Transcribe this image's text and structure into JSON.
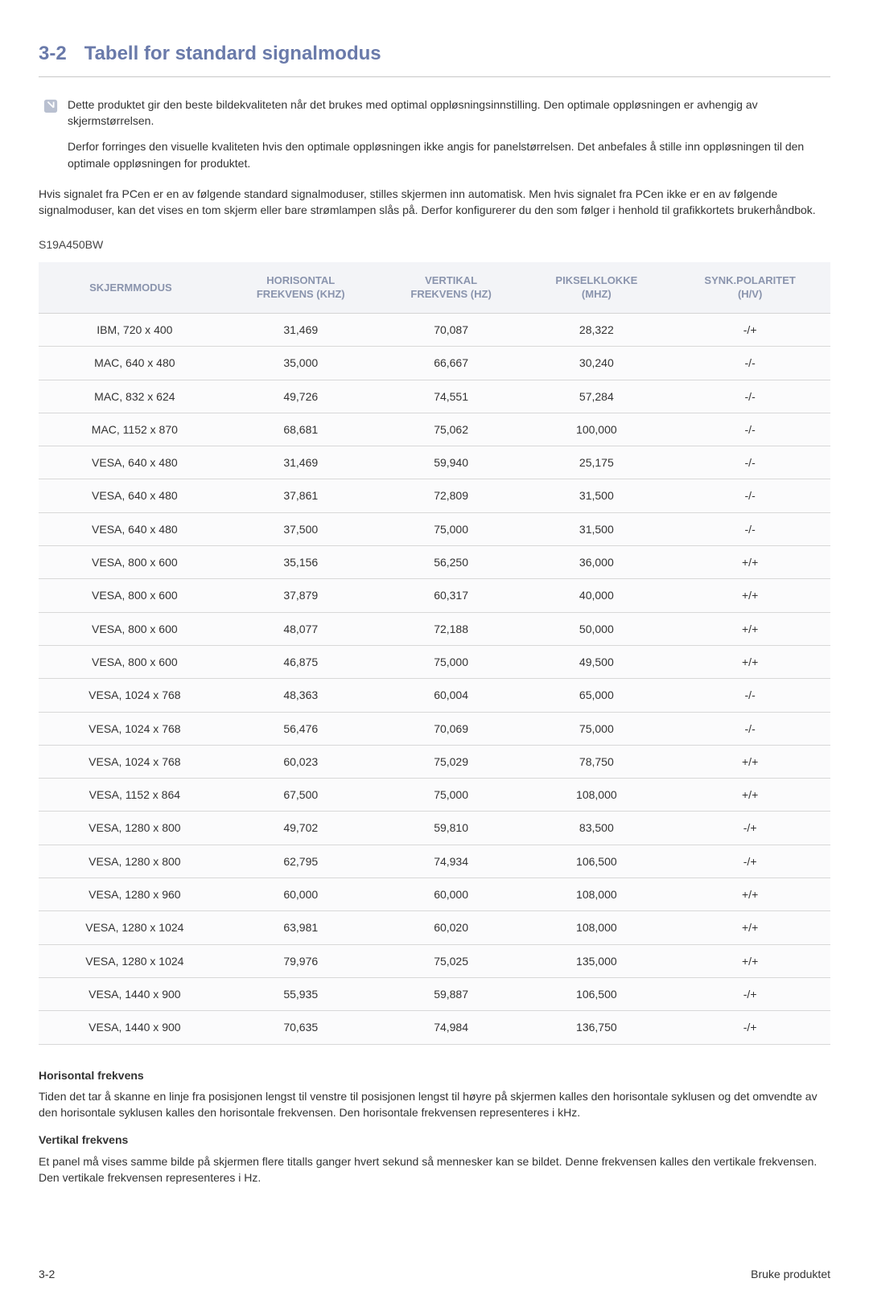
{
  "heading": {
    "number": "3-2",
    "title": "Tabell for standard signalmodus"
  },
  "note": {
    "line1": "Dette produktet gir den beste bildekvaliteten når det brukes med optimal oppløsningsinnstilling. Den optimale oppløsningen er avhengig av skjermstørrelsen.",
    "line2": "Derfor forringes den visuelle kvaliteten hvis den optimale oppløsningen ikke angis for panelstørrelsen. Det anbefales å stille inn oppløsningen til den optimale oppløsningen for produktet."
  },
  "intro": "Hvis signalet fra PCen er en av følgende standard signalmoduser, stilles skjermen inn automatisk. Men hvis signalet fra PCen ikke er en av følgende signalmoduser, kan det vises en tom skjerm eller bare strømlampen slås på. Derfor konfigurerer du den som følger i henhold til grafikkortets brukerhåndbok.",
  "model": "S19A450BW",
  "table": {
    "headers": {
      "c0": "SKJERMMODUS",
      "c1_l1": "HORISONTAL",
      "c1_l2": "FREKVENS (KHZ)",
      "c2_l1": "VERTIKAL",
      "c2_l2": "FREKVENS (HZ)",
      "c3_l1": "PIKSELKLOKKE",
      "c3_l2": "(MHZ)",
      "c4_l1": "SYNK.POLARITET",
      "c4_l2": "(H/V)"
    },
    "rows": [
      [
        "IBM, 720 x 400",
        "31,469",
        "70,087",
        "28,322",
        "-/+"
      ],
      [
        "MAC, 640 x 480",
        "35,000",
        "66,667",
        "30,240",
        "-/-"
      ],
      [
        "MAC, 832 x 624",
        "49,726",
        "74,551",
        "57,284",
        "-/-"
      ],
      [
        "MAC, 1152 x 870",
        "68,681",
        "75,062",
        "100,000",
        "-/-"
      ],
      [
        "VESA, 640 x 480",
        "31,469",
        "59,940",
        "25,175",
        "-/-"
      ],
      [
        "VESA, 640 x 480",
        "37,861",
        "72,809",
        "31,500",
        "-/-"
      ],
      [
        "VESA, 640 x 480",
        "37,500",
        "75,000",
        "31,500",
        "-/-"
      ],
      [
        "VESA, 800 x 600",
        "35,156",
        "56,250",
        "36,000",
        "+/+"
      ],
      [
        "VESA, 800 x 600",
        "37,879",
        "60,317",
        "40,000",
        "+/+"
      ],
      [
        "VESA, 800 x 600",
        "48,077",
        "72,188",
        "50,000",
        "+/+"
      ],
      [
        "VESA, 800 x 600",
        "46,875",
        "75,000",
        "49,500",
        "+/+"
      ],
      [
        "VESA, 1024 x 768",
        "48,363",
        "60,004",
        "65,000",
        "-/-"
      ],
      [
        "VESA, 1024 x 768",
        "56,476",
        "70,069",
        "75,000",
        "-/-"
      ],
      [
        "VESA, 1024 x 768",
        "60,023",
        "75,029",
        "78,750",
        "+/+"
      ],
      [
        "VESA, 1152 x 864",
        "67,500",
        "75,000",
        "108,000",
        "+/+"
      ],
      [
        "VESA, 1280 x 800",
        "49,702",
        "59,810",
        "83,500",
        "-/+"
      ],
      [
        "VESA, 1280 x 800",
        "62,795",
        "74,934",
        "106,500",
        "-/+"
      ],
      [
        "VESA, 1280 x 960",
        "60,000",
        "60,000",
        "108,000",
        "+/+"
      ],
      [
        "VESA, 1280 x 1024",
        "63,981",
        "60,020",
        "108,000",
        "+/+"
      ],
      [
        "VESA, 1280 x 1024",
        "79,976",
        "75,025",
        "135,000",
        "+/+"
      ],
      [
        "VESA, 1440 x 900",
        "55,935",
        "59,887",
        "106,500",
        "-/+"
      ],
      [
        "VESA, 1440 x 900",
        "70,635",
        "74,984",
        "136,750",
        "-/+"
      ]
    ]
  },
  "definitions": {
    "h1": "Horisontal frekvens",
    "p1": "Tiden det tar å skanne en linje fra posisjonen lengst til venstre til posisjonen lengst til høyre på skjermen kalles den horisontale syklusen og det omvendte av den horisontale syklusen kalles den horisontale frekvensen. Den horisontale frekvensen representeres i kHz.",
    "h2": "Vertikal frekvens",
    "p2": "Et panel må vises samme bilde på skjermen flere titalls ganger hvert sekund så mennesker kan se bildet. Denne frekvensen kalles den vertikale frekvensen. Den vertikale frekvensen representeres i Hz."
  },
  "footer": {
    "left": "3-2",
    "right": "Bruke produktet"
  }
}
